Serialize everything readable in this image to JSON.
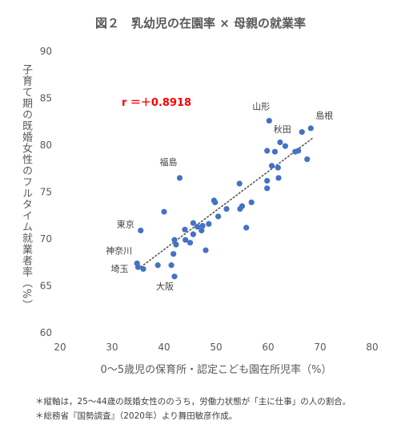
{
  "chart_data": {
    "type": "scatter",
    "title": "図２　乳幼児の在園率 × 母親の就業率",
    "xlabel": "0〜5歳児の保育所・認定こども園在所児率（%）",
    "ylabel": "子育て期の既婚女性のフルタイム就業者率（%）",
    "xlim": [
      20,
      80
    ],
    "ylim": [
      60,
      90
    ],
    "x_ticks": [
      "20",
      "30",
      "40",
      "50",
      "60",
      "70",
      "80"
    ],
    "y_ticks": [
      "60",
      "65",
      "70",
      "75",
      "80",
      "85",
      "90"
    ],
    "grid": false,
    "trendline": {
      "style": "dotted",
      "from_x": 35,
      "to_x": 68.5
    },
    "correlation_label": "r ＝＋0.8918",
    "point_color": "#4472c4",
    "correlation_color": "#ff0000",
    "points": [
      {
        "x": 60.2,
        "y": 82.6,
        "label": "山形"
      },
      {
        "x": 68.2,
        "y": 81.8,
        "label": "島根"
      },
      {
        "x": 65.2,
        "y": 79.3,
        "label": "秋田"
      },
      {
        "x": 43.0,
        "y": 76.5,
        "label": "福島"
      },
      {
        "x": 35.5,
        "y": 70.9,
        "label": "東京"
      },
      {
        "x": 34.8,
        "y": 67.4,
        "label": "神奈川"
      },
      {
        "x": 35.0,
        "y": 67.0,
        "label": "埼玉"
      },
      {
        "x": 42.0,
        "y": 66.0,
        "label": "大阪"
      },
      {
        "x": 67.5,
        "y": 78.5
      },
      {
        "x": 66.5,
        "y": 81.4
      },
      {
        "x": 65.8,
        "y": 79.4
      },
      {
        "x": 62.3,
        "y": 80.3
      },
      {
        "x": 63.3,
        "y": 79.9
      },
      {
        "x": 61.3,
        "y": 79.3
      },
      {
        "x": 59.8,
        "y": 79.4
      },
      {
        "x": 60.7,
        "y": 77.8
      },
      {
        "x": 61.9,
        "y": 77.6
      },
      {
        "x": 59.8,
        "y": 76.2
      },
      {
        "x": 62.0,
        "y": 76.5
      },
      {
        "x": 59.8,
        "y": 75.4
      },
      {
        "x": 54.5,
        "y": 75.9
      },
      {
        "x": 56.8,
        "y": 73.9
      },
      {
        "x": 55.0,
        "y": 73.5
      },
      {
        "x": 54.6,
        "y": 73.2
      },
      {
        "x": 49.6,
        "y": 74.1
      },
      {
        "x": 49.8,
        "y": 73.9
      },
      {
        "x": 52.0,
        "y": 73.2
      },
      {
        "x": 50.4,
        "y": 72.4
      },
      {
        "x": 55.8,
        "y": 71.2
      },
      {
        "x": 40.0,
        "y": 72.9
      },
      {
        "x": 45.6,
        "y": 71.7
      },
      {
        "x": 46.4,
        "y": 71.3
      },
      {
        "x": 47.4,
        "y": 71.4
      },
      {
        "x": 48.6,
        "y": 71.6
      },
      {
        "x": 47.2,
        "y": 70.9
      },
      {
        "x": 44.0,
        "y": 71.0
      },
      {
        "x": 45.6,
        "y": 70.5
      },
      {
        "x": 42.0,
        "y": 69.9
      },
      {
        "x": 42.3,
        "y": 69.4
      },
      {
        "x": 44.1,
        "y": 69.9
      },
      {
        "x": 45.0,
        "y": 69.6
      },
      {
        "x": 41.8,
        "y": 68.4
      },
      {
        "x": 48.0,
        "y": 68.8
      },
      {
        "x": 38.8,
        "y": 67.2
      },
      {
        "x": 41.4,
        "y": 67.2
      },
      {
        "x": 36.0,
        "y": 66.8
      }
    ]
  },
  "notes": [
    "＊縦軸は，25〜44歳の既婚女性ののうち，労働力状態が「主に仕事」の人の割合。",
    "＊総務省『国勢調査』（2020年）より舞田敏彦作成。"
  ]
}
